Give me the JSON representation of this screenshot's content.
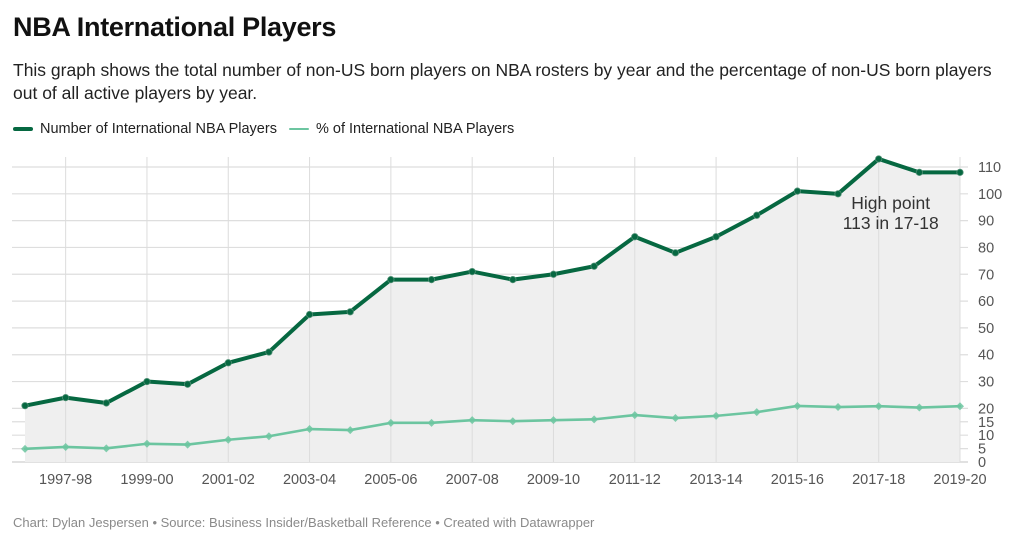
{
  "header": {
    "title": "NBA International Players",
    "subtitle": "This graph shows the total number of non-US born players on NBA rosters by year and the percentage of non-US born players out of all active players by year."
  },
  "legend": [
    {
      "label": "Number of International NBA Players",
      "color": "#066841"
    },
    {
      "label": "% of International NBA Players",
      "color": "#6cc5a0"
    }
  ],
  "footer": "Chart: Dylan Jespersen • Source: Business Insider/Basketball Reference • Created with Datawrapper",
  "chart_data": {
    "type": "line",
    "title": "NBA International Players",
    "xlabel": "",
    "ylabel": "",
    "categories": [
      "1996-97",
      "1997-98",
      "1998-99",
      "1999-00",
      "2000-01",
      "2001-02",
      "2002-03",
      "2003-04",
      "2004-05",
      "2005-06",
      "2006-07",
      "2007-08",
      "2008-09",
      "2009-10",
      "2010-11",
      "2011-12",
      "2012-13",
      "2013-14",
      "2014-15",
      "2015-16",
      "2016-17",
      "2017-18",
      "2018-19",
      "2019-20"
    ],
    "x_tick_labels": [
      "1997-98",
      "1999-00",
      "2001-02",
      "2003-04",
      "2005-06",
      "2007-08",
      "2009-10",
      "2011-12",
      "2013-14",
      "2015-16",
      "2017-18",
      "2019-20"
    ],
    "y_ticks": [
      0,
      5,
      10,
      15,
      20,
      30,
      40,
      50,
      60,
      70,
      80,
      90,
      100,
      110
    ],
    "ylim": [
      0,
      113
    ],
    "grid": true,
    "y_axis_side": "right",
    "legend_position": "top-left",
    "series": [
      {
        "name": "Number of International NBA Players",
        "color": "#066841",
        "area_fill": "#efefef",
        "values": [
          21,
          24,
          22,
          30,
          29,
          37,
          41,
          55,
          56,
          68,
          68,
          71,
          68,
          70,
          73,
          84,
          78,
          84,
          92,
          101,
          100,
          113,
          108,
          108
        ]
      },
      {
        "name": "% of International NBA Players",
        "color": "#6cc5a0",
        "values": [
          4.9,
          5.6,
          5.1,
          6.8,
          6.5,
          8.3,
          9.6,
          12.3,
          11.9,
          14.6,
          14.6,
          15.6,
          15.2,
          15.6,
          15.9,
          17.5,
          16.4,
          17.2,
          18.6,
          20.9,
          20.5,
          20.8,
          20.3,
          20.8
        ]
      }
    ],
    "annotations": [
      {
        "lines": [
          "High point",
          "113 in 17-18"
        ],
        "target_category": "2017-18"
      }
    ]
  }
}
